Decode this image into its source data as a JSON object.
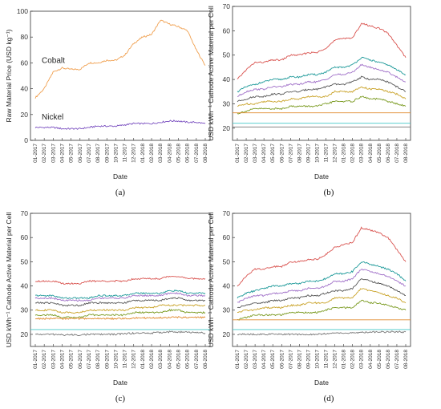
{
  "chart_data": [
    {
      "panel": "(a)",
      "type": "line",
      "xlabel": "Date",
      "ylabel": "Raw Material Price (USD kg⁻¹)",
      "ylim": [
        0,
        100
      ],
      "yticks": [
        0,
        20,
        40,
        60,
        80,
        100
      ],
      "x_tick_labels": [
        "01-2017",
        "02-2017",
        "03-2017",
        "04-2017",
        "05-2017",
        "06-2017",
        "07-2017",
        "08-2017",
        "09-2017",
        "10-2017",
        "11-2017",
        "12-2017",
        "01-2018",
        "02-2018",
        "03-2018",
        "04-2018",
        "05-2018",
        "06-2018",
        "07-2018",
        "08-2018"
      ],
      "annotations": [
        "Cobalt",
        "Nickel"
      ],
      "series": [
        {
          "name": "Cobalt",
          "color": "#f0a050",
          "values": [
            33,
            40,
            53,
            56,
            55,
            55,
            60,
            60,
            62,
            62,
            66,
            75,
            80,
            82,
            93,
            90,
            88,
            85,
            70,
            58
          ]
        },
        {
          "name": "Nickel",
          "color": "#7a4fc0",
          "values": [
            10,
            10,
            10,
            9,
            9,
            9,
            10,
            11,
            11,
            11,
            12,
            13,
            13,
            13,
            14,
            15,
            15,
            14,
            14,
            13
          ]
        }
      ]
    },
    {
      "panel": "(b)",
      "type": "line",
      "xlabel": "Date",
      "ylabel": "USD kWh⁻¹ Cathode Active Material per Cell",
      "ylim": [
        15,
        70
      ],
      "yticks": [
        20,
        30,
        40,
        50,
        60,
        70
      ],
      "x_tick_labels": [
        "01-2017",
        "02-2017",
        "03-2017",
        "04-2017",
        "05-2017",
        "06-2017",
        "07-2017",
        "08-2017",
        "09-2017",
        "10-2017",
        "11-2017",
        "12-2017",
        "01-2018",
        "02-2018",
        "03-2018",
        "04-2018",
        "05-2018",
        "06-2018",
        "07-2018",
        "08-2018"
      ],
      "series": [
        {
          "color": "#d9534f",
          "values": [
            40,
            44,
            47,
            47,
            48,
            48,
            50,
            50,
            51,
            51,
            53,
            56,
            57,
            57,
            63,
            62,
            61,
            59,
            54,
            49
          ]
        },
        {
          "color": "#1f9a9a",
          "values": [
            35,
            37,
            38,
            39,
            40,
            40,
            41,
            41,
            42,
            42,
            43,
            45,
            45,
            46,
            49,
            48,
            47,
            46,
            44,
            42
          ]
        },
        {
          "color": "#a070c8",
          "values": [
            33,
            35,
            36,
            36,
            37,
            37,
            38,
            38,
            39,
            39,
            40,
            42,
            42,
            43,
            46,
            45,
            44,
            43,
            41,
            39
          ]
        },
        {
          "color": "#555555",
          "values": [
            31,
            32,
            33,
            33,
            34,
            34,
            35,
            35,
            36,
            36,
            37,
            38,
            38,
            39,
            41,
            40,
            40,
            39,
            37,
            35
          ]
        },
        {
          "color": "#c9a227",
          "values": [
            29,
            30,
            30,
            31,
            31,
            31,
            32,
            32,
            33,
            33,
            33,
            35,
            35,
            35,
            37,
            36,
            36,
            35,
            34,
            32
          ]
        },
        {
          "color": "#7a9a20",
          "values": [
            26,
            27,
            28,
            28,
            28,
            28,
            29,
            29,
            29,
            29,
            30,
            31,
            31,
            31,
            33,
            32,
            32,
            31,
            30,
            29
          ]
        },
        {
          "color": "#e08a2c",
          "values": [
            26.3,
            26.3,
            26.3,
            26.3,
            26.3,
            26.3,
            26.3,
            26.3,
            26.3,
            26.3,
            26.3,
            26.3,
            26.3,
            26.3,
            26.3,
            26.3,
            26.3,
            26.3,
            26.3,
            26.3
          ]
        },
        {
          "color": "#45c8c8",
          "values": [
            22,
            22,
            22,
            22,
            22,
            22,
            22,
            22,
            22,
            22,
            22,
            22,
            22,
            22,
            22,
            22,
            22,
            22,
            22,
            22
          ]
        },
        {
          "color": "#777777",
          "values": [
            20.5,
            20.5,
            20.5,
            20.5,
            20.5,
            20.5,
            20.5,
            20.5,
            20.5,
            20.5,
            20.5,
            20.5,
            20.5,
            20.5,
            20.5,
            20.5,
            20.5,
            20.5,
            20.5,
            20.5
          ]
        }
      ]
    },
    {
      "panel": "(c)",
      "type": "line",
      "xlabel": "Date",
      "ylabel": "USD kWh⁻¹ Cathode Active Material per Cell",
      "ylim": [
        15,
        70
      ],
      "yticks": [
        20,
        30,
        40,
        50,
        60,
        70
      ],
      "x_tick_labels": [
        "01-2017",
        "02-2017",
        "03-2017",
        "04-2017",
        "05-2017",
        "06-2017",
        "07-2017",
        "08-2017",
        "09-2017",
        "10-2017",
        "11-2017",
        "12-2017",
        "01-2018",
        "02-2018",
        "03-2018",
        "04-2018",
        "05-2018",
        "06-2018",
        "07-2018",
        "08-2018"
      ],
      "series": [
        {
          "color": "#d9534f",
          "values": [
            42,
            42,
            42,
            41,
            41,
            41,
            42,
            42,
            42,
            42,
            42,
            43,
            43,
            43,
            43,
            44,
            44,
            43,
            43,
            43
          ]
        },
        {
          "color": "#1f9a9a",
          "values": [
            36,
            36,
            36,
            35,
            35,
            35,
            35,
            36,
            36,
            36,
            36,
            37,
            37,
            37,
            37,
            38,
            38,
            37,
            37,
            37
          ]
        },
        {
          "color": "#a070c8",
          "values": [
            35,
            35,
            35,
            34,
            34,
            34,
            34,
            35,
            35,
            35,
            35,
            36,
            36,
            36,
            36,
            37,
            37,
            36,
            36,
            36
          ]
        },
        {
          "color": "#555555",
          "values": [
            33,
            33,
            33,
            32,
            32,
            32,
            33,
            33,
            33,
            33,
            33,
            34,
            34,
            34,
            34,
            35,
            35,
            34,
            34,
            34
          ]
        },
        {
          "color": "#c9a227",
          "values": [
            30,
            30,
            30,
            29,
            29,
            29,
            30,
            30,
            30,
            30,
            30,
            31,
            31,
            31,
            32,
            32,
            32,
            32,
            32,
            32
          ]
        },
        {
          "color": "#7a9a20",
          "values": [
            28,
            28,
            28,
            27,
            27,
            27,
            28,
            28,
            28,
            28,
            28,
            29,
            29,
            29,
            29,
            30,
            30,
            29,
            29,
            29
          ]
        },
        {
          "color": "#e08a2c",
          "values": [
            26.5,
            26.5,
            26.5,
            26.5,
            26.5,
            26.5,
            26.5,
            26.5,
            26.5,
            26.5,
            26.5,
            26.8,
            26.8,
            26.8,
            26.8,
            27,
            27,
            27,
            27,
            27
          ]
        },
        {
          "color": "#45c8c8",
          "values": [
            22,
            22,
            22,
            22,
            22,
            22,
            22,
            22,
            22,
            22,
            22,
            22,
            22,
            22,
            22,
            22,
            22,
            22,
            22,
            22
          ]
        },
        {
          "color": "#777777",
          "values": [
            20,
            20,
            20,
            19.8,
            19.8,
            19.8,
            20,
            20,
            20,
            20,
            20.3,
            20.5,
            20.5,
            20.5,
            20.8,
            21,
            21,
            20.8,
            20.8,
            20.5
          ]
        }
      ]
    },
    {
      "panel": "(d)",
      "type": "line",
      "xlabel": "Date",
      "ylabel": "USD kWh⁻¹ Cathode Active Material per Cell",
      "ylim": [
        15,
        70
      ],
      "yticks": [
        20,
        30,
        40,
        50,
        60,
        70
      ],
      "x_tick_labels": [
        "01-2017",
        "02-2017",
        "03-2017",
        "04-2017",
        "05-2017",
        "06-2017",
        "07-2017",
        "08-2017",
        "09-2017",
        "10-2017",
        "11-2017",
        "12-2017",
        "01-2018",
        "02-2018",
        "03-2018",
        "04-2018",
        "05-2018",
        "06-2018",
        "07-2018",
        "08-2018"
      ],
      "series": [
        {
          "color": "#d9534f",
          "values": [
            40,
            44,
            47,
            47,
            48,
            48,
            50,
            50,
            51,
            51,
            53,
            56,
            57,
            58,
            64,
            63,
            62,
            60,
            55,
            50
          ]
        },
        {
          "color": "#1f9a9a",
          "values": [
            35,
            37,
            38,
            39,
            40,
            40,
            41,
            41,
            42,
            42,
            43,
            45,
            45,
            46,
            50,
            49,
            48,
            47,
            45,
            42
          ]
        },
        {
          "color": "#a070c8",
          "values": [
            33,
            35,
            36,
            36,
            37,
            37,
            38,
            38,
            39,
            39,
            40,
            42,
            42,
            43,
            47,
            46,
            45,
            44,
            42,
            40
          ]
        },
        {
          "color": "#555555",
          "values": [
            31,
            32,
            33,
            33,
            34,
            34,
            35,
            35,
            36,
            36,
            37,
            38,
            38,
            39,
            43,
            42,
            41,
            40,
            38,
            36
          ]
        },
        {
          "color": "#c9a227",
          "values": [
            29,
            30,
            30,
            31,
            31,
            31,
            32,
            32,
            33,
            33,
            33,
            35,
            35,
            35,
            39,
            38,
            37,
            36,
            35,
            33
          ]
        },
        {
          "color": "#7a9a20",
          "values": [
            26,
            27,
            28,
            28,
            28,
            28,
            29,
            29,
            29,
            29,
            30,
            31,
            31,
            31,
            34,
            33,
            33,
            32,
            31,
            30
          ]
        },
        {
          "color": "#e08a2c",
          "values": [
            26,
            26,
            26,
            26,
            26,
            26,
            26,
            26,
            26,
            26,
            26,
            26,
            26,
            26,
            26,
            26,
            26,
            26,
            26,
            26
          ]
        },
        {
          "color": "#45c8c8",
          "values": [
            22,
            22,
            22,
            22,
            22,
            22,
            22,
            22,
            22,
            22,
            22,
            22,
            22,
            22,
            22,
            22,
            22,
            22,
            22,
            22
          ]
        },
        {
          "color": "#777777",
          "values": [
            20,
            20,
            20,
            20,
            20,
            20,
            20,
            20,
            20,
            20,
            20.3,
            20.5,
            20.5,
            20.5,
            20.8,
            21,
            21,
            21,
            21,
            21
          ]
        }
      ]
    }
  ]
}
